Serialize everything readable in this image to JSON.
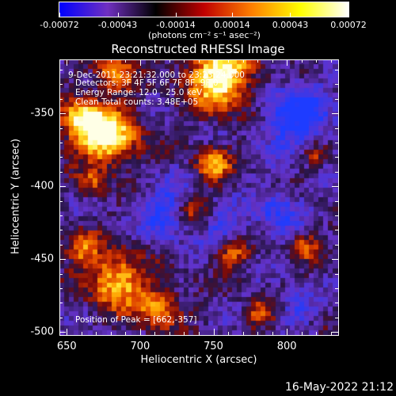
{
  "chart_data": {
    "type": "heatmap",
    "title": "Reconstructed RHESSI Image",
    "xlabel": "Heliocentric X (arcsec)",
    "ylabel": "Heliocentric Y (arcsec)",
    "xlim": [
      645,
      835
    ],
    "ylim": [
      -502,
      -313
    ],
    "xticks": [
      "650",
      "700",
      "750",
      "800"
    ],
    "yticks": [
      "-350",
      "-400",
      "-450",
      "-500"
    ],
    "colorbar": {
      "ticks": [
        "-0.00072",
        "-0.00043",
        "-0.00014",
        "0.00014",
        "0.00043",
        "0.00072"
      ],
      "unit": "(photons cm⁻² s⁻¹ asec⁻²)",
      "range": [
        -0.00072,
        0.00072
      ],
      "colors": [
        "#0000ff",
        "#7030c0",
        "#000000",
        "#c00000",
        "#ff8000",
        "#ffff00",
        "#ffffff"
      ]
    },
    "annotations": [
      "9-Dec-2011 23:21:32.000 to 23:23:24.000",
      "Detectors: 3F 4F 5F 6F 7F 8F, 9F 0",
      "Energy Range: 12.0 - 25.0 keV",
      "Clean     Total counts: 3.48E+05"
    ],
    "peak_label": "Position of Peak = [662,-357]"
  },
  "footer": {
    "date": "16-May-2022 21:12"
  }
}
